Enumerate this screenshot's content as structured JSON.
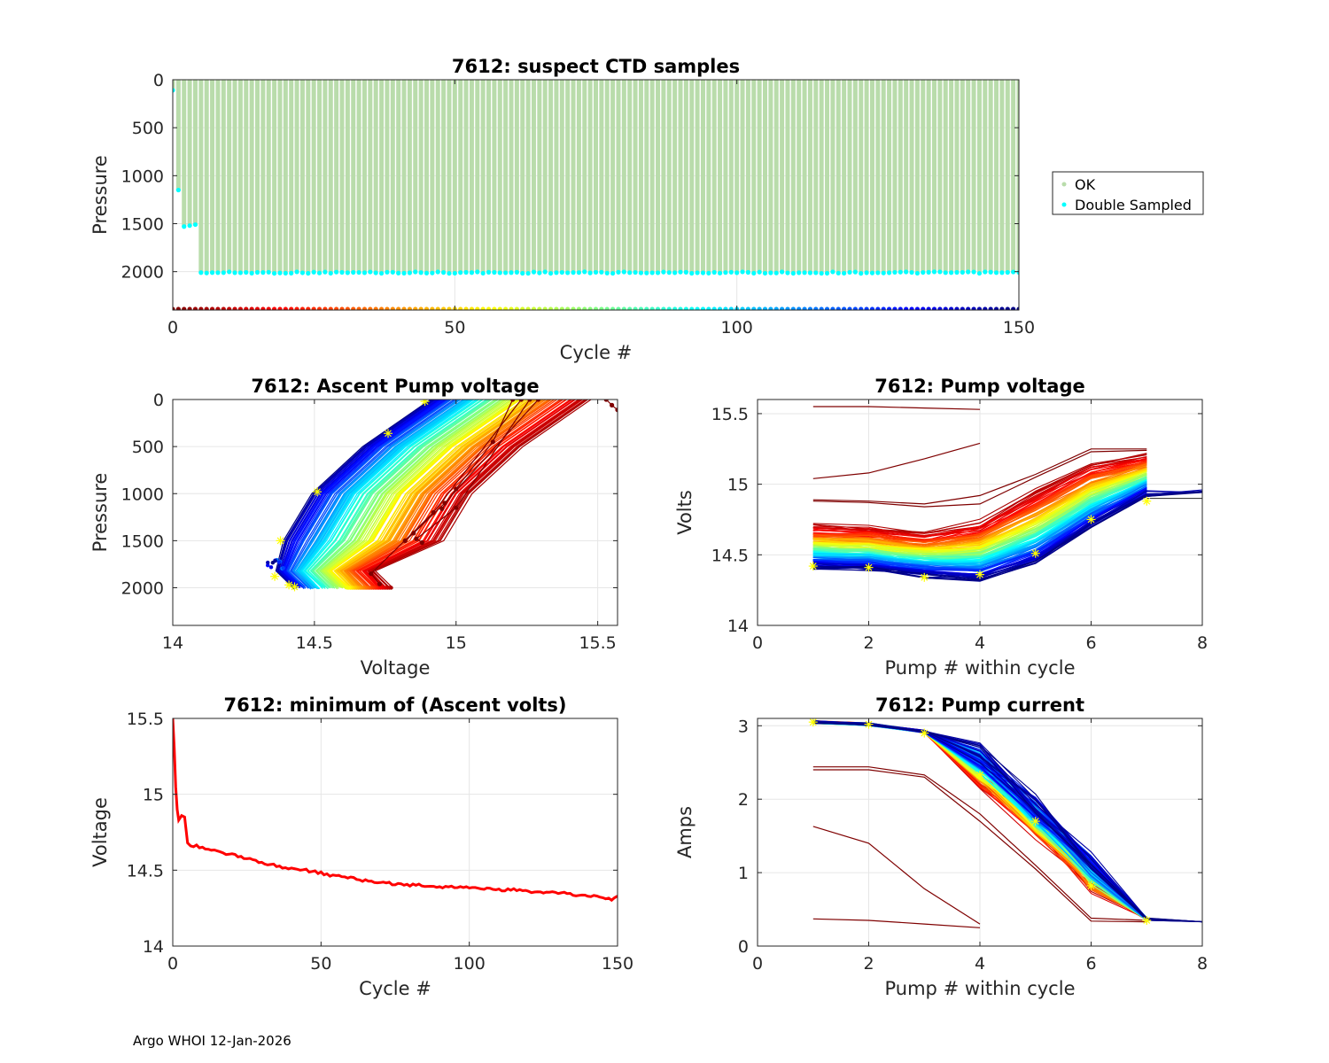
{
  "footer": "Argo WHOI 12-Jan-2026",
  "colors": {
    "ok": "#b9dcab",
    "double_sampled": "#00ffff",
    "min_line": "#ff0000",
    "marker": "#ffff00",
    "grid": "#e6e6e6"
  },
  "chart_data": [
    {
      "id": "ctd",
      "type": "scatter",
      "title": "7612: suspect CTD samples",
      "xlabel": "Cycle #",
      "ylabel": "Pressure",
      "xlim": [
        0,
        150
      ],
      "ylim": [
        0,
        2400
      ],
      "y_reversed": true,
      "xticks": [
        0,
        50,
        100,
        150
      ],
      "yticks": [
        0,
        500,
        1000,
        1500,
        2000
      ],
      "legend": {
        "placement": "outside-right",
        "entries": [
          "OK",
          "Double Sampled"
        ]
      },
      "series": [
        {
          "name": "OK",
          "description": "profile samples from 0 to max depth for every cycle 0-150"
        },
        {
          "name": "Double Sampled",
          "points": [
            [
              0,
              110
            ],
            [
              1,
              1150
            ],
            [
              2,
              1530
            ],
            [
              3,
              1520
            ],
            [
              4,
              1510
            ],
            [
              5,
              2010
            ]
          ],
          "deep_pressure_after_cycle_5": 2010
        },
        {
          "name": "cycle color bar",
          "pressure": 2400,
          "cycles": [
            0,
            150
          ],
          "colormap": "jet-reversed (dark red to dark blue)"
        }
      ]
    },
    {
      "id": "ascent",
      "type": "line",
      "title": "7612: Ascent Pump voltage",
      "xlabel": "Voltage",
      "ylabel": "Pressure",
      "xlim": [
        14,
        15.57
      ],
      "ylim": [
        0,
        2400
      ],
      "y_reversed": true,
      "xticks": [
        14,
        14.5,
        15,
        15.5
      ],
      "yticks": [
        0,
        500,
        1000,
        1500,
        2000
      ],
      "description": "one colored line per cycle (0-150, jet colormap) from ~2000 dbar to surface",
      "outlier_cycles": [
        {
          "points": [
            [
              14.73,
              1960
            ],
            [
              14.7,
              1850
            ],
            [
              14.92,
              1200
            ],
            [
              15.23,
              0
            ]
          ]
        },
        {
          "points": [
            [
              14.82,
              1500
            ],
            [
              14.85,
              1420
            ],
            [
              14.96,
              1100
            ],
            [
              15.29,
              0
            ]
          ]
        },
        {
          "points": [
            [
              14.88,
              1520
            ],
            [
              14.86,
              1480
            ],
            [
              15.0,
              1150
            ],
            [
              15.26,
              0
            ]
          ]
        },
        {
          "points": [
            [
              14.95,
              1160
            ],
            [
              15.0,
              950
            ],
            [
              15.13,
              450
            ],
            [
              15.2,
              0
            ]
          ]
        },
        {
          "points": [
            [
              15.53,
              0
            ],
            [
              15.55,
              60
            ],
            [
              15.57,
              110
            ]
          ]
        }
      ],
      "yellow_markers": [
        [
          14.36,
          1880
        ],
        [
          14.38,
          1500
        ],
        [
          14.41,
          1970
        ],
        [
          14.43,
          1990
        ],
        [
          14.51,
          980
        ],
        [
          14.76,
          360
        ],
        [
          14.89,
          20
        ]
      ]
    },
    {
      "id": "pumpv",
      "type": "line",
      "title": "7612: Pump voltage",
      "xlabel": "Pump # within cycle",
      "ylabel": "Volts",
      "xlim": [
        0,
        8
      ],
      "ylim": [
        14,
        15.6
      ],
      "xticks": [
        0,
        2,
        4,
        6,
        8
      ],
      "yticks": [
        14,
        14.5,
        15,
        15.5
      ],
      "description": "one line per cycle over pumps 1-7, colored by cycle",
      "early_profiles": [
        [
          [
            1,
            15.55
          ],
          [
            2,
            15.55
          ],
          [
            3,
            15.54
          ],
          [
            4,
            15.53
          ]
        ],
        [
          [
            1,
            15.04
          ],
          [
            2,
            15.08
          ],
          [
            3,
            15.18
          ],
          [
            4,
            15.29
          ]
        ],
        [
          [
            1,
            14.89
          ],
          [
            2,
            14.88
          ],
          [
            3,
            14.86
          ],
          [
            4,
            14.92
          ],
          [
            5,
            15.07
          ],
          [
            6,
            15.25
          ],
          [
            7,
            15.25
          ]
        ],
        [
          [
            1,
            14.88
          ],
          [
            2,
            14.87
          ],
          [
            3,
            14.84
          ],
          [
            4,
            14.86
          ],
          [
            5,
            15.05
          ],
          [
            6,
            15.23
          ],
          [
            7,
            15.24
          ]
        ]
      ],
      "first_profile": [
        [
          1,
          14.71
        ],
        [
          2,
          14.7
        ],
        [
          3,
          14.66
        ],
        [
          4,
          14.74
        ],
        [
          5,
          14.96
        ],
        [
          6,
          15.16
        ],
        [
          7,
          15.21
        ]
      ],
      "last_profile": [
        [
          1,
          14.41
        ],
        [
          2,
          14.4
        ],
        [
          3,
          14.35
        ],
        [
          4,
          14.32
        ],
        [
          5,
          14.44
        ],
        [
          6,
          14.7
        ],
        [
          7,
          14.93
        ],
        [
          8,
          14.95
        ]
      ],
      "yellow_markers": [
        [
          1,
          14.42
        ],
        [
          2,
          14.41
        ],
        [
          3,
          14.34
        ],
        [
          4,
          14.36
        ],
        [
          5,
          14.51
        ],
        [
          6,
          14.75
        ],
        [
          7,
          14.88
        ]
      ]
    },
    {
      "id": "minv",
      "type": "line",
      "title": "7612: minimum of (Ascent volts)",
      "xlabel": "Cycle #",
      "ylabel": "Voltage",
      "xlim": [
        0,
        150
      ],
      "ylim": [
        14,
        15.5
      ],
      "xticks": [
        0,
        50,
        100,
        150
      ],
      "yticks": [
        14,
        14.5,
        15,
        15.5
      ],
      "series": [
        {
          "name": "minimum ascent volts",
          "x": [
            0,
            0.5,
            1,
            1.5,
            2,
            3,
            4,
            5,
            6,
            8,
            10,
            15,
            20,
            25,
            30,
            35,
            40,
            45,
            50,
            55,
            60,
            65,
            70,
            75,
            80,
            85,
            90,
            95,
            100,
            105,
            110,
            115,
            120,
            125,
            130,
            135,
            140,
            145,
            148,
            149,
            150
          ],
          "y": [
            15.5,
            15.3,
            15.05,
            14.9,
            14.83,
            14.86,
            14.85,
            14.68,
            14.66,
            14.66,
            14.65,
            14.62,
            14.6,
            14.58,
            14.55,
            14.53,
            14.51,
            14.5,
            14.48,
            14.46,
            14.45,
            14.43,
            14.42,
            14.41,
            14.4,
            14.4,
            14.39,
            14.39,
            14.38,
            14.38,
            14.37,
            14.37,
            14.36,
            14.35,
            14.35,
            14.34,
            14.33,
            14.32,
            14.3,
            14.32,
            14.33
          ]
        }
      ]
    },
    {
      "id": "pumpc",
      "type": "line",
      "title": "7612: Pump current",
      "xlabel": "Pump # within cycle",
      "ylabel": "Amps",
      "xlim": [
        0,
        8
      ],
      "ylim": [
        0,
        3.1
      ],
      "xticks": [
        0,
        2,
        4,
        6,
        8
      ],
      "yticks": [
        0,
        1,
        2,
        3
      ],
      "description": "one line per cycle over pumps 1-7, colored by cycle",
      "early_profiles": [
        [
          [
            1,
            0.37
          ],
          [
            2,
            0.35
          ],
          [
            3,
            0.3
          ],
          [
            4,
            0.25
          ]
        ],
        [
          [
            1,
            1.63
          ],
          [
            2,
            1.4
          ],
          [
            3,
            0.78
          ],
          [
            4,
            0.3
          ]
        ],
        [
          [
            1,
            2.44
          ],
          [
            2,
            2.44
          ],
          [
            3,
            2.33
          ],
          [
            4,
            1.8
          ],
          [
            5,
            1.1
          ],
          [
            6,
            0.38
          ],
          [
            7,
            0.35
          ]
        ],
        [
          [
            1,
            2.4
          ],
          [
            2,
            2.4
          ],
          [
            3,
            2.3
          ],
          [
            4,
            1.7
          ],
          [
            5,
            1.05
          ],
          [
            6,
            0.34
          ],
          [
            7,
            0.33
          ]
        ]
      ],
      "main_band": [
        [
          1,
          3.05
        ],
        [
          2,
          3.02
        ],
        [
          3,
          2.92
        ],
        [
          4,
          2.4
        ],
        [
          5,
          1.7
        ],
        [
          6,
          0.95
        ],
        [
          7,
          0.37
        ]
      ],
      "yellow_markers": [
        [
          1,
          3.05
        ],
        [
          2,
          3.02
        ],
        [
          3,
          2.9
        ],
        [
          4,
          2.33
        ],
        [
          5,
          1.7
        ],
        [
          6,
          0.82
        ],
        [
          7,
          0.35
        ]
      ]
    }
  ]
}
